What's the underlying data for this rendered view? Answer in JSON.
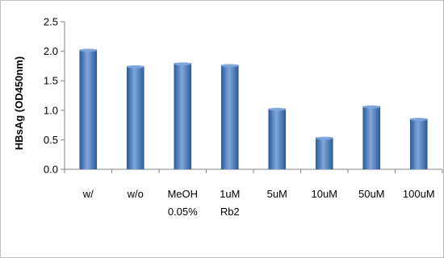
{
  "chart_data": {
    "type": "bar",
    "title": "",
    "xlabel": "",
    "ylabel": "HBsAg (OD450nm)",
    "categories": [
      [
        "w/"
      ],
      [
        "w/o"
      ],
      [
        "MeOH",
        "0.05%"
      ],
      [
        "1uM",
        "Rb2"
      ],
      [
        "5uM"
      ],
      [
        "10uM"
      ],
      [
        "50uM"
      ],
      [
        "100uM"
      ]
    ],
    "values": [
      2.03,
      1.75,
      1.8,
      1.77,
      1.03,
      0.54,
      1.07,
      0.86
    ],
    "ylim": [
      0,
      2.5
    ],
    "yticks": [
      0.0,
      0.5,
      1.0,
      1.5,
      2.0,
      2.5
    ],
    "ytick_labels": [
      "0.0",
      "0.5",
      "1.0",
      "1.5",
      "2.0",
      "2.5"
    ],
    "grid": false,
    "legend": "none",
    "bar_color": "#4a7ebb",
    "bar_color_light": "#7ea7dc",
    "bar_color_dark": "#2c5a96"
  }
}
